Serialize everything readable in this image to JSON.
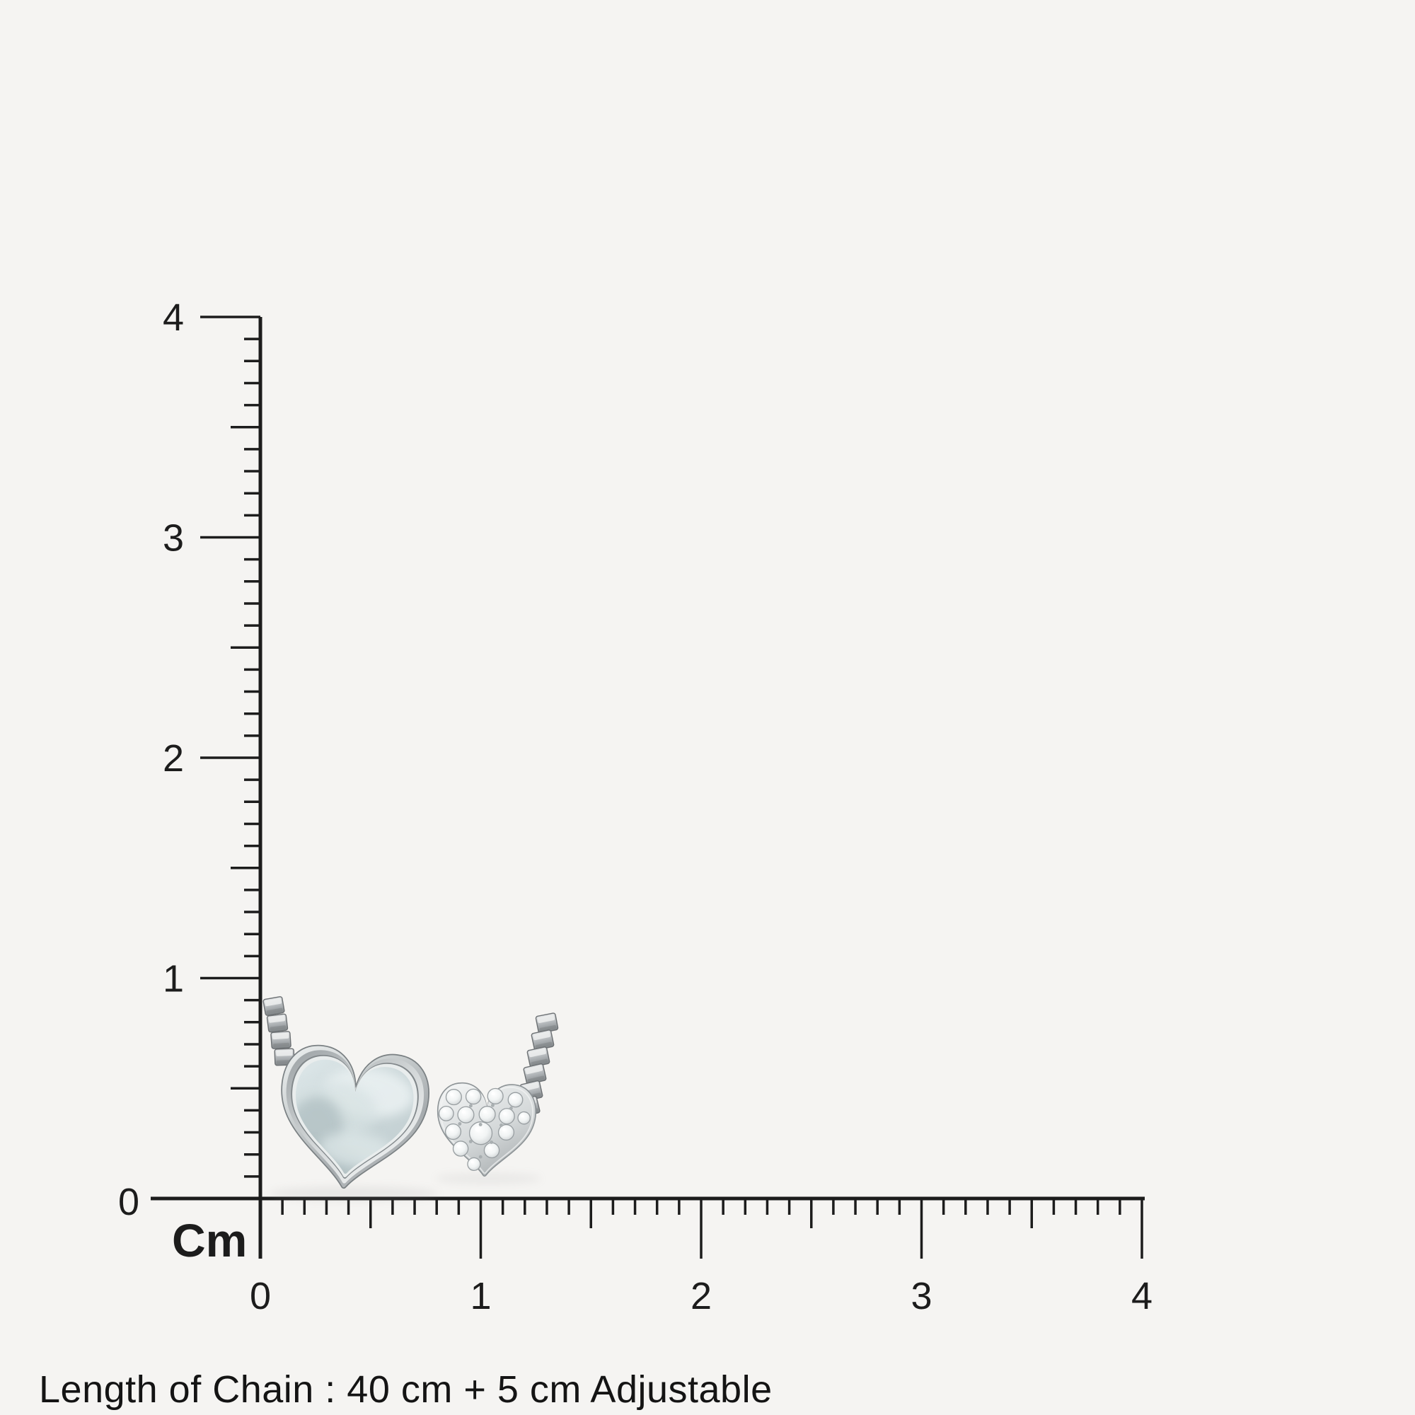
{
  "ruler": {
    "unit_label": "Cm",
    "vertical_labels": [
      "4",
      "3",
      "2",
      "1",
      "0"
    ],
    "horizontal_labels": [
      "0",
      "1",
      "2",
      "3",
      "4"
    ],
    "range_cm": 4,
    "minor_step_cm": 0.1,
    "ink_color": "#1c1c1c"
  },
  "caption": {
    "text": "Length of Chain : 40 cm + 5 cm Adjustable"
  },
  "photo": {
    "background": "#f5f4f2",
    "silver_light": "#eff1f2",
    "silver_mid": "#b5babc",
    "silver_dark": "#878d90",
    "mother_of_pearl": "#ccd8da"
  }
}
